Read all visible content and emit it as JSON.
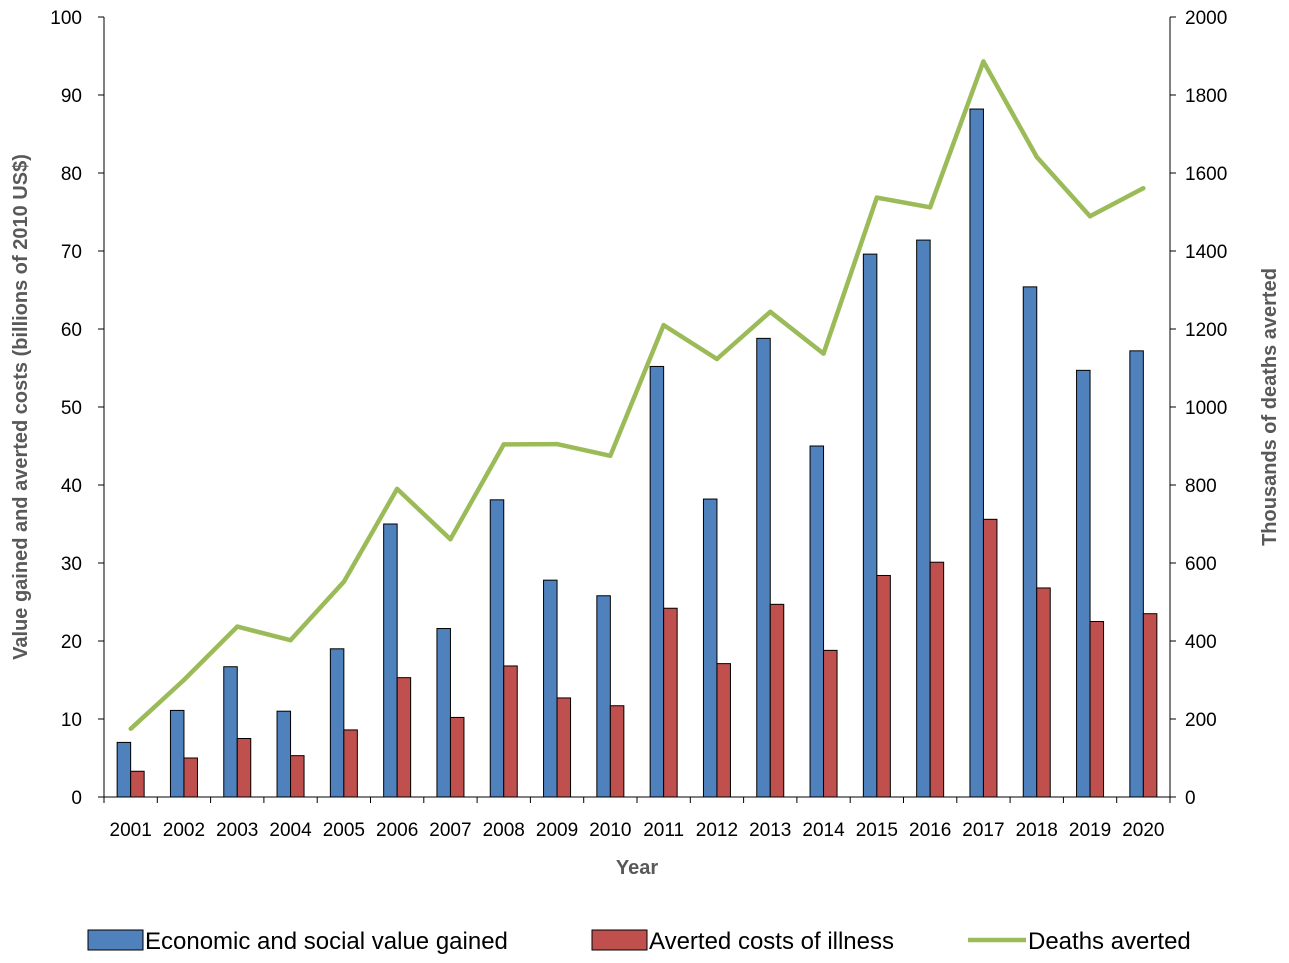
{
  "chart_data": {
    "type": "bar",
    "xlabel": "Year",
    "ylabel": "Value gained and averted costs (billions of 2010 US$)",
    "y2label": "Thousands of deaths averted",
    "ylim": [
      0,
      100
    ],
    "y2lim": [
      0,
      2000
    ],
    "yticks": [
      0,
      10,
      20,
      30,
      40,
      50,
      60,
      70,
      80,
      90,
      100
    ],
    "y2ticks": [
      0,
      200,
      400,
      600,
      800,
      1000,
      1200,
      1400,
      1600,
      1800,
      2000
    ],
    "categories": [
      "2001",
      "2002",
      "2003",
      "2004",
      "2005",
      "2006",
      "2007",
      "2008",
      "2009",
      "2010",
      "2011",
      "2012",
      "2013",
      "2014",
      "2015",
      "2016",
      "2017",
      "2018",
      "2019",
      "2020"
    ],
    "series": [
      {
        "name": "Economic and social value gained",
        "type": "bar",
        "axis": "left",
        "color": "#4F81BD",
        "values": [
          7.0,
          11.1,
          16.7,
          11.0,
          19.0,
          35.0,
          21.6,
          38.1,
          27.8,
          25.8,
          55.2,
          38.2,
          58.8,
          45.0,
          69.6,
          71.4,
          88.2,
          65.4,
          54.7,
          57.2
        ]
      },
      {
        "name": "Averted costs of illness",
        "type": "bar",
        "axis": "left",
        "color": "#C0504D",
        "values": [
          3.3,
          5.0,
          7.5,
          5.3,
          8.6,
          15.3,
          10.2,
          16.8,
          12.7,
          11.7,
          24.2,
          17.1,
          24.7,
          18.8,
          28.4,
          30.1,
          35.6,
          26.8,
          22.5,
          23.5
        ]
      },
      {
        "name": "Deaths averted",
        "type": "line",
        "axis": "right",
        "color": "#9BBB59",
        "values": [
          175,
          300,
          437,
          402,
          552,
          790,
          661,
          904,
          905,
          875,
          1210,
          1123,
          1244,
          1137,
          1537,
          1512,
          1886,
          1641,
          1489,
          1561
        ]
      }
    ],
    "legend_position": "bottom",
    "grid": false
  }
}
